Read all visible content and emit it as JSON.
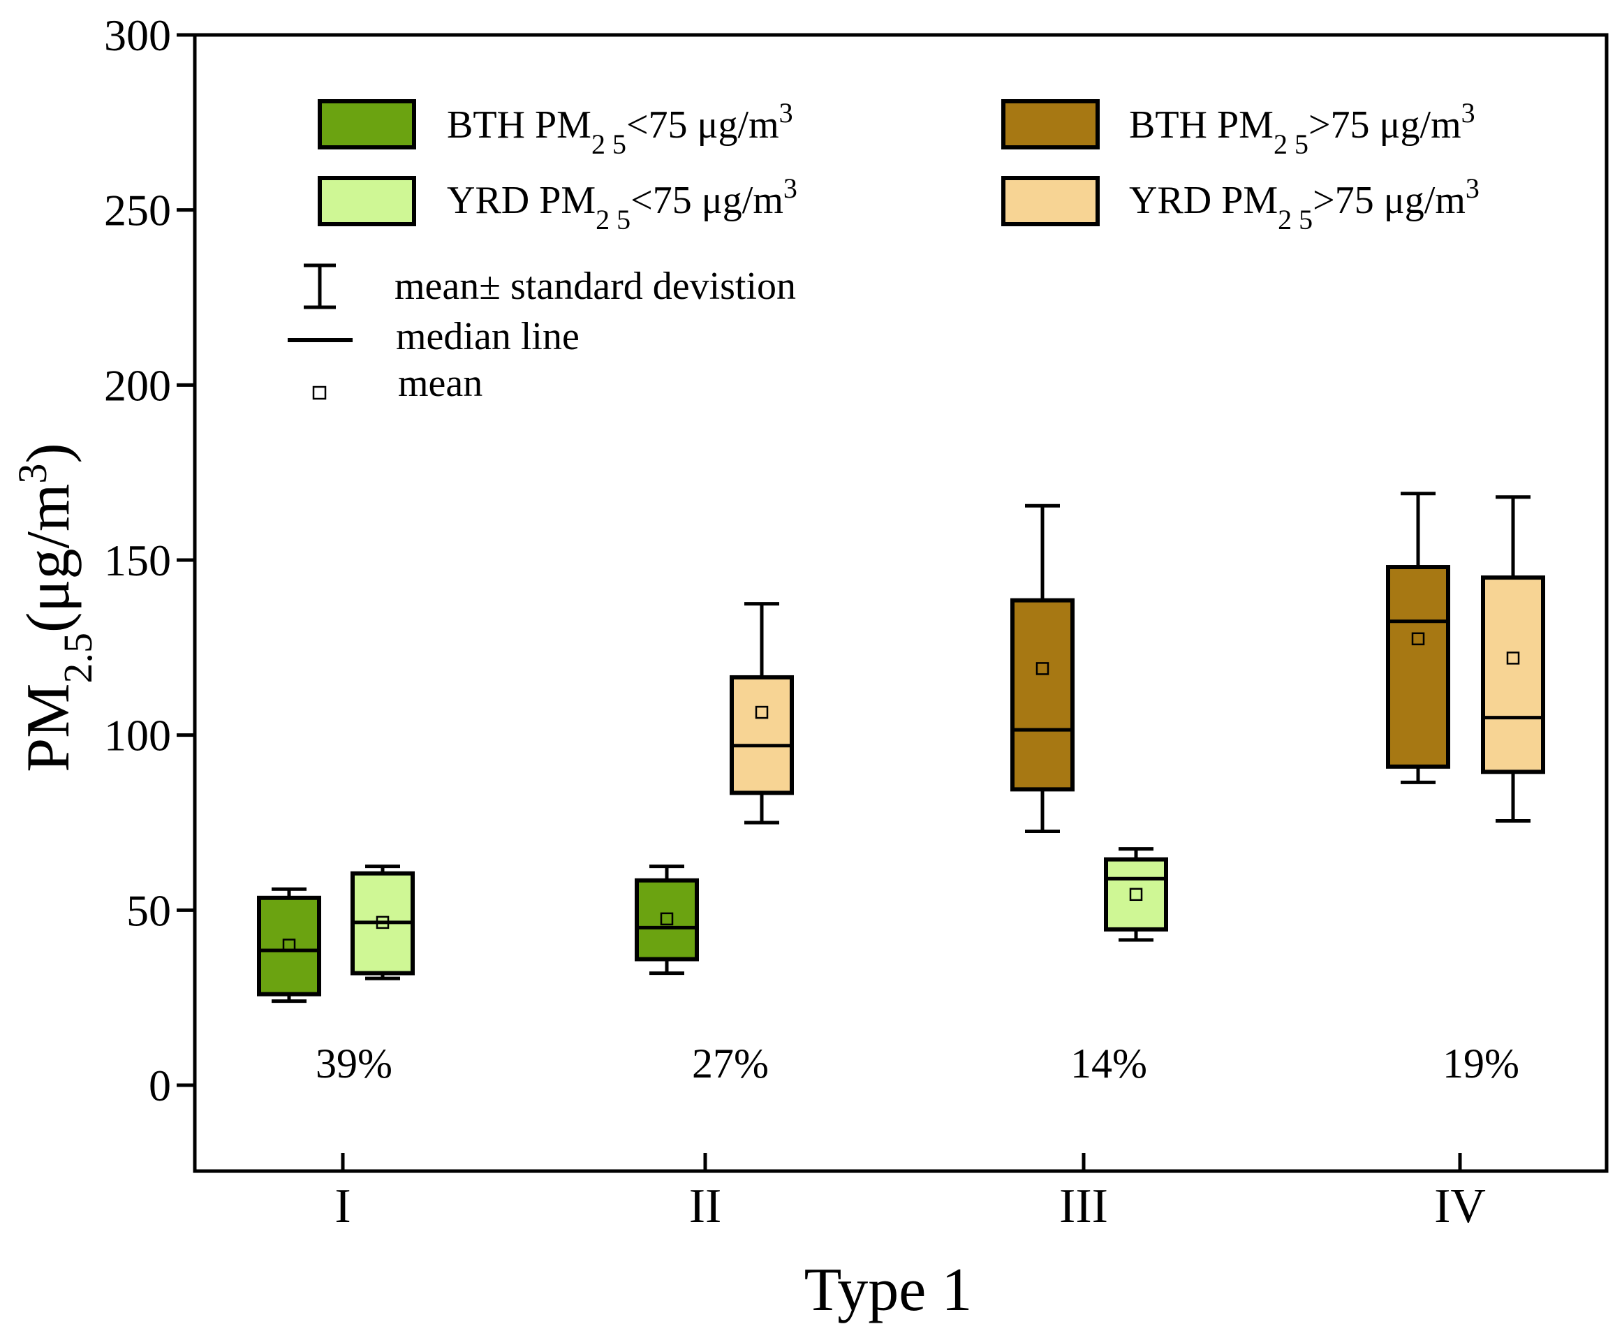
{
  "chart_data": {
    "type": "box",
    "xlabel": "Type 1",
    "ylabel": {
      "main": "PM",
      "sub": "2.5",
      "units_pre": "(μg/m",
      "units_sup": "3",
      "units_post": ")"
    },
    "ylim": [
      -25,
      300
    ],
    "yticks": [
      0,
      50,
      100,
      150,
      200,
      250,
      300
    ],
    "categories": [
      "I",
      "II",
      "III",
      "IV"
    ],
    "percent_labels": [
      "39%",
      "27%",
      "14%",
      "19%"
    ],
    "series": [
      {
        "key": "bth_low",
        "group": "BTH",
        "label_main": "PM",
        "label_sub": "2 5",
        "label_rest": "<75 μg/m",
        "label_sup": "3",
        "color": "#6ba311",
        "points": [
          {
            "category": "I",
            "whisker_low": 24,
            "q1": 26,
            "median": 38.5,
            "q3": 53.5,
            "whisker_high": 56,
            "mean": 40
          },
          {
            "category": "II",
            "whisker_low": 32,
            "q1": 36,
            "median": 45,
            "q3": 58.5,
            "whisker_high": 62.5,
            "mean": 47.5
          }
        ]
      },
      {
        "key": "yrd_low",
        "group": "YRD",
        "label_main": "PM",
        "label_sub": "2 5",
        "label_rest": "<75 μg/m",
        "label_sup": "3",
        "color": "#cff795",
        "points": [
          {
            "category": "I",
            "whisker_low": 30.5,
            "q1": 32,
            "median": 46.5,
            "q3": 60.5,
            "whisker_high": 62.5,
            "mean": 46.5
          },
          {
            "category": "III",
            "whisker_low": 41.5,
            "q1": 44.5,
            "median": 59,
            "q3": 64.5,
            "whisker_high": 67.5,
            "mean": 54.5
          }
        ]
      },
      {
        "key": "bth_high",
        "group": "BTH",
        "label_main": "PM",
        "label_sub": "2 5",
        "label_rest": ">75 μg/m",
        "label_sup": "3",
        "color": "#a77813",
        "points": [
          {
            "category": "III",
            "whisker_low": 72.5,
            "q1": 84.5,
            "median": 101.5,
            "q3": 138.5,
            "whisker_high": 165.5,
            "mean": 119
          },
          {
            "category": "IV",
            "whisker_low": 86.5,
            "q1": 91,
            "median": 132.5,
            "q3": 148,
            "whisker_high": 169,
            "mean": 127.5
          }
        ]
      },
      {
        "key": "yrd_high",
        "group": "YRD",
        "label_main": "PM",
        "label_sub": "2 5",
        "label_rest": ">75 μg/m",
        "label_sup": "3",
        "color": "#f7d494",
        "points": [
          {
            "category": "II",
            "whisker_low": 75,
            "q1": 83.5,
            "median": 97,
            "q3": 116.5,
            "whisker_high": 137.5,
            "mean": 106.5
          },
          {
            "category": "IV",
            "whisker_low": 75.5,
            "q1": 89.5,
            "median": 105,
            "q3": 145,
            "whisker_high": 168,
            "mean": 122
          }
        ]
      }
    ],
    "legend_order": [
      "bth_low",
      "bth_high",
      "yrd_low",
      "yrd_high"
    ],
    "stats_legend": {
      "sd_text": "mean± standard devistion",
      "median_text": "median line",
      "mean_text": "mean"
    }
  }
}
